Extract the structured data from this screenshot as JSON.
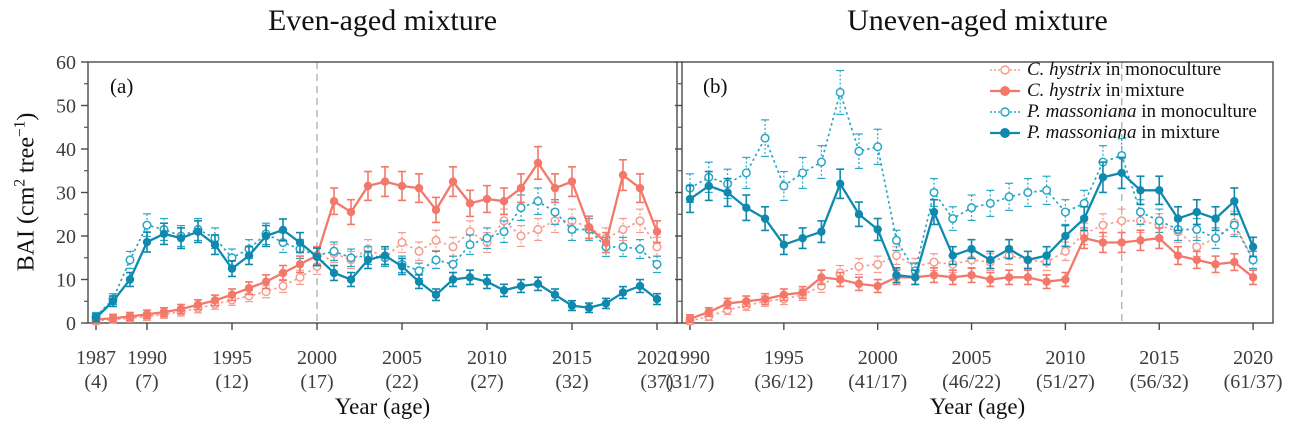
{
  "figure": {
    "x_axis_label": "Year (age)",
    "y_axis_label": {
      "text": "BAI (cm2 tree−1)",
      "prefix": "BAI (cm",
      "sup_1": "2",
      "middle": " tree",
      "sup_2": "−1",
      "suffix": ")"
    }
  },
  "legend": {
    "position": "top-right of panel b",
    "items": [
      {
        "species": "C. hystrix",
        "rest": " in monoculture",
        "series": "ch_mono",
        "marker": "open",
        "line": "dotted"
      },
      {
        "species": "C. hystrix",
        "rest": " in mixture",
        "series": "ch_mix",
        "marker": "filled",
        "line": "solid"
      },
      {
        "species": "P. massoniana",
        "rest": " in monoculture",
        "series": "pm_mono",
        "marker": "open",
        "line": "dotted"
      },
      {
        "species": "P. massoniana",
        "rest": " in mixture",
        "series": "pm_mix",
        "marker": "filled",
        "line": "solid"
      }
    ]
  },
  "colors": {
    "ch_mono": "#f79c90",
    "ch_mix": "#f4786a",
    "pm_mono": "#29a7c7",
    "pm_mix": "#0f89ad",
    "dashed_line": "#b3b3b3",
    "axis": "#4a4a4a",
    "tick_label": "#3d3d3d",
    "title": "#111111"
  },
  "chart_data": [
    {
      "type": "line",
      "panel": "a",
      "panel_label": "(a)",
      "title": "Even-aged mixture",
      "xlabel": "Year (age)",
      "ylabel": "BAI (cm2 tree−1)",
      "ylim": [
        0,
        60
      ],
      "y_ticks": [
        0,
        10,
        20,
        30,
        40,
        50,
        60
      ],
      "y_minor_tick_step": 5,
      "grid": false,
      "error_bars": "vertical error bars shown on every point (approx ±1-4)",
      "dashed_line_year": 2000,
      "x_ticks": [
        {
          "year": 1987,
          "age_label": "(4)"
        },
        {
          "year": 1990,
          "age_label": "(7)"
        },
        {
          "year": 1995,
          "age_label": "(12)"
        },
        {
          "year": 2000,
          "age_label": "(17)"
        },
        {
          "year": 2005,
          "age_label": "(22)"
        },
        {
          "year": 2010,
          "age_label": "(27)"
        },
        {
          "year": 2015,
          "age_label": "(32)"
        },
        {
          "year": 2020,
          "age_label": "(37)"
        }
      ],
      "years": [
        1987,
        1988,
        1989,
        1990,
        1991,
        1992,
        1993,
        1994,
        1995,
        1996,
        1997,
        1998,
        1999,
        2000,
        2001,
        2002,
        2003,
        2004,
        2005,
        2006,
        2007,
        2008,
        2009,
        2010,
        2011,
        2012,
        2013,
        2014,
        2015,
        2016,
        2017,
        2018,
        2019,
        2020
      ],
      "series": [
        {
          "name": "C. hystrix in monoculture",
          "key": "ch_mono",
          "line_style": "dotted",
          "marker": "open",
          "values": [
            0.5,
            0.8,
            1.1,
            1.5,
            2.0,
            2.6,
            3.4,
            4.3,
            5.3,
            6.2,
            7.2,
            8.5,
            10.5,
            13.0,
            16.0,
            14.5,
            17.0,
            15.0,
            18.5,
            16.5,
            19.0,
            17.5,
            21.0,
            18.5,
            23.5,
            20.0,
            21.5,
            23.5,
            23.5,
            22.0,
            19.5,
            21.5,
            23.5,
            17.5
          ]
        },
        {
          "name": "C. hystrix in mixture",
          "key": "ch_mix",
          "line_style": "solid",
          "marker": "filled",
          "values": [
            0.8,
            1.1,
            1.5,
            2.0,
            2.5,
            3.2,
            4.2,
            5.2,
            6.5,
            8.0,
            9.5,
            11.5,
            13.5,
            15.5,
            28.0,
            25.5,
            31.5,
            32.5,
            31.5,
            31.0,
            26.0,
            32.5,
            27.5,
            28.5,
            28.0,
            31.0,
            36.8,
            31.0,
            32.5,
            22.0,
            18.5,
            34.0,
            31.0,
            21.0
          ]
        },
        {
          "name": "P. massoniana in monoculture",
          "key": "pm_mono",
          "line_style": "dotted",
          "marker": "open",
          "values": [
            1.5,
            5.5,
            14.5,
            22.5,
            21.5,
            20.0,
            21.5,
            19.5,
            15.0,
            17.0,
            20.5,
            18.5,
            17.0,
            15.5,
            16.5,
            15.0,
            15.5,
            15.0,
            13.5,
            12.0,
            14.5,
            13.5,
            18.0,
            19.5,
            21.0,
            26.5,
            28.0,
            25.5,
            21.5,
            21.5,
            17.5,
            17.5,
            17.0,
            13.5
          ]
        },
        {
          "name": "P. massoniana in mixture",
          "key": "pm_mix",
          "line_style": "solid",
          "marker": "filled",
          "values": [
            1.2,
            5.0,
            10.0,
            18.6,
            20.5,
            19.5,
            21.0,
            18.0,
            12.5,
            15.5,
            20.0,
            21.4,
            18.5,
            15.2,
            11.5,
            10.0,
            14.5,
            15.5,
            13.0,
            9.5,
            6.5,
            10.0,
            10.5,
            9.5,
            7.5,
            8.5,
            9.0,
            6.5,
            4.0,
            3.5,
            4.5,
            7.0,
            8.5,
            5.5
          ]
        }
      ]
    },
    {
      "type": "line",
      "panel": "b",
      "panel_label": "(b)",
      "title": "Uneven-aged mixture",
      "xlabel": "Year (age)",
      "ylabel": "BAI (cm2 tree−1)",
      "ylim": [
        0,
        60
      ],
      "y_ticks": [
        0,
        10,
        20,
        30,
        40,
        50,
        60
      ],
      "y_minor_tick_step": 5,
      "grid": false,
      "error_bars": "vertical error bars shown on every point (approx ±1-5)",
      "dashed_line_year": 2013,
      "x_ticks": [
        {
          "year": 1990,
          "age_label": "(31/7)"
        },
        {
          "year": 1995,
          "age_label": "(36/12)"
        },
        {
          "year": 2000,
          "age_label": "(41/17)"
        },
        {
          "year": 2005,
          "age_label": "(46/22)"
        },
        {
          "year": 2010,
          "age_label": "(51/27)"
        },
        {
          "year": 2015,
          "age_label": "(56/32)"
        },
        {
          "year": 2020,
          "age_label": "(61/37)"
        }
      ],
      "years": [
        1990,
        1991,
        1992,
        1993,
        1994,
        1995,
        1996,
        1997,
        1998,
        1999,
        2000,
        2001,
        2002,
        2003,
        2004,
        2005,
        2006,
        2007,
        2008,
        2009,
        2010,
        2011,
        2012,
        2013,
        2014,
        2015,
        2016,
        2017,
        2018,
        2019,
        2020
      ],
      "series": [
        {
          "name": "C. hystrix in monoculture",
          "key": "ch_mono",
          "line_style": "dotted",
          "marker": "open",
          "values": [
            0.5,
            1.5,
            3.0,
            4.0,
            5.0,
            5.5,
            6.5,
            8.5,
            11.5,
            13.0,
            13.5,
            15.5,
            13.0,
            14.0,
            13.5,
            14.5,
            14.0,
            15.5,
            14.5,
            14.0,
            16.5,
            20.5,
            22.5,
            23.5,
            23.5,
            22.5,
            21.0,
            17.5,
            19.5,
            23.0,
            14.5
          ]
        },
        {
          "name": "C. hystrix in mixture",
          "key": "ch_mix",
          "line_style": "solid",
          "marker": "filled",
          "values": [
            1.0,
            2.5,
            4.5,
            5.0,
            5.5,
            6.5,
            7.0,
            10.5,
            10.0,
            9.0,
            8.5,
            10.5,
            10.5,
            11.0,
            10.5,
            11.0,
            10.0,
            10.5,
            10.5,
            9.5,
            10.0,
            19.5,
            18.5,
            18.5,
            19.0,
            19.5,
            15.5,
            14.5,
            13.5,
            14.0,
            10.5
          ]
        },
        {
          "name": "P. massoniana in monoculture",
          "key": "pm_mono",
          "line_style": "dotted",
          "marker": "open",
          "values": [
            31.0,
            33.5,
            32.0,
            34.5,
            42.5,
            31.5,
            34.5,
            37.0,
            53.0,
            39.5,
            40.5,
            19.0,
            12.0,
            30.0,
            24.0,
            26.5,
            27.5,
            29.0,
            30.0,
            30.5,
            25.5,
            27.5,
            37.0,
            38.5,
            25.5,
            23.5,
            21.5,
            21.5,
            19.5,
            22.5,
            14.5
          ]
        },
        {
          "name": "P. massoniana in mixture",
          "key": "pm_mix",
          "line_style": "solid",
          "marker": "filled",
          "values": [
            28.5,
            31.5,
            30.0,
            26.5,
            24.0,
            18.0,
            19.5,
            21.0,
            32.0,
            25.0,
            21.5,
            11.0,
            10.5,
            25.5,
            15.5,
            17.0,
            14.5,
            17.0,
            14.5,
            15.5,
            20.0,
            24.0,
            33.5,
            34.5,
            30.5,
            30.5,
            24.0,
            25.5,
            24.0,
            28.0,
            17.5
          ]
        }
      ]
    }
  ]
}
